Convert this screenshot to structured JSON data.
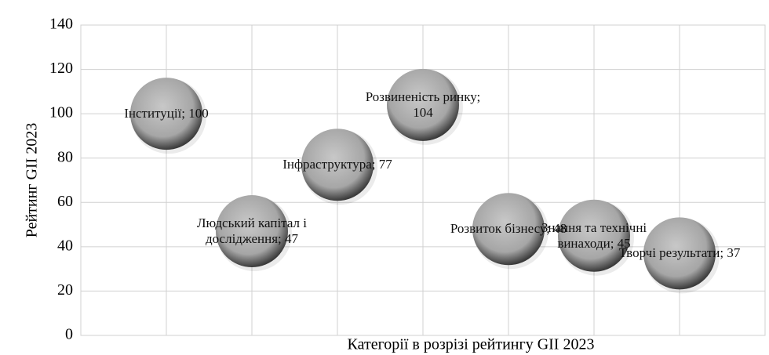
{
  "chart_data": {
    "type": "bubble",
    "y_label": "Рейтинг GII 2023",
    "x_label": "Категорії в розрізі рейтингу GII 2023",
    "x": [
      1,
      2,
      3,
      4,
      5,
      6,
      7
    ],
    "values": [
      100,
      47,
      77,
      104,
      48,
      45,
      37
    ],
    "value_labels": [
      "Інституції; 100",
      "Людський капітал і дослідження; 47",
      "Інфраструктура; 77",
      "Розвиненість ринку; 104",
      "Розвиток бізнесу; 48",
      "Знання та технічні винаходи; 45",
      "Творчі результати; 37"
    ],
    "color": "#a6a6a6",
    "xlim": [
      0,
      8
    ],
    "xticks": [
      1,
      2,
      3,
      4,
      5,
      6,
      7
    ],
    "ylim": [
      0,
      140
    ],
    "yticks": [
      0,
      20,
      40,
      60,
      80,
      100,
      120,
      140
    ],
    "grid": true
  }
}
